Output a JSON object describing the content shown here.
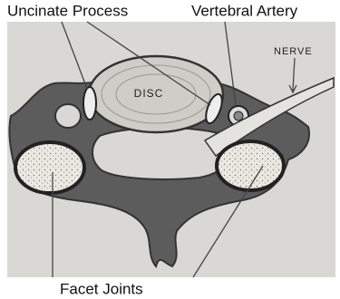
{
  "labels": {
    "uncinate_process": "Uncinate Process",
    "vertebral_artery": "Vertebral Artery",
    "facet_joints": "Facet Joints"
  },
  "illustration": {
    "disc": "DISC",
    "nerve": "NERVE"
  }
}
